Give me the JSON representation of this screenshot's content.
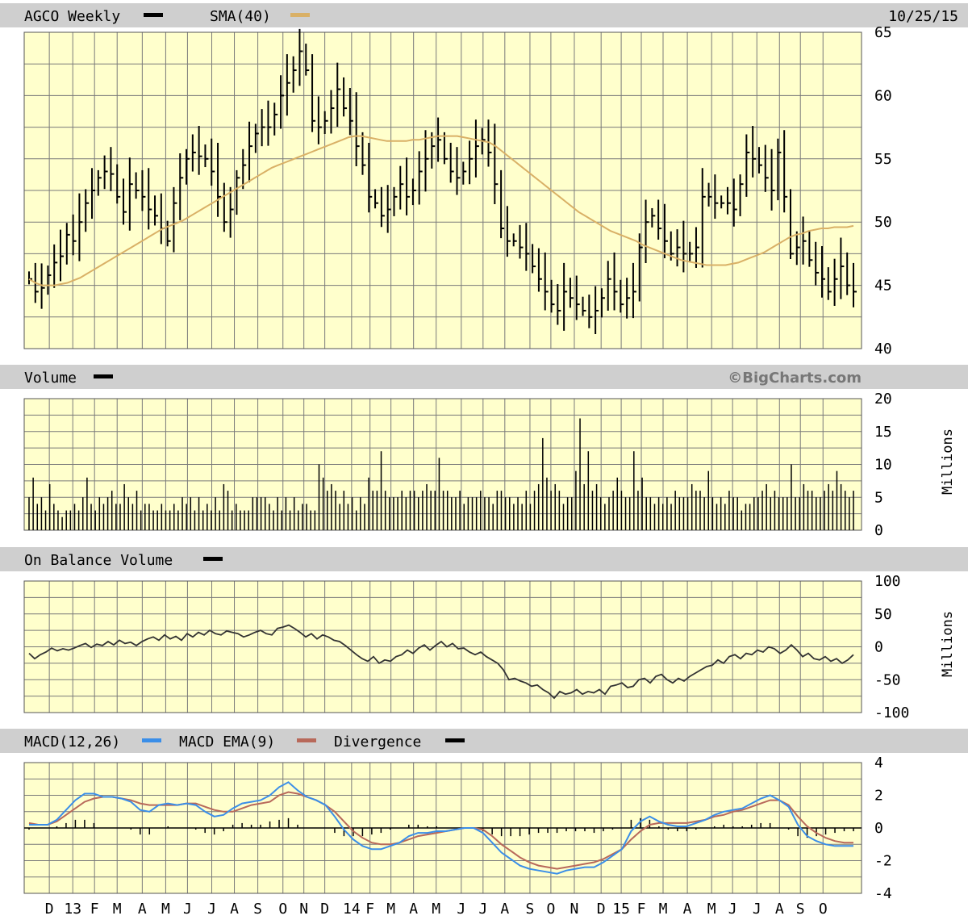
{
  "header": {
    "title": "AGCO Weekly",
    "sma_label": "SMA(40)",
    "date": "10/25/15"
  },
  "volume_panel": {
    "title": "Volume",
    "watermark": "©BigCharts.com",
    "unit": "Millions"
  },
  "obv_panel": {
    "title": "On Balance Volume",
    "unit": "Millions"
  },
  "macd_panel": {
    "title1": "MACD(12,26)",
    "title2": "MACD EMA(9)",
    "title3": "Divergence"
  },
  "colors": {
    "background": "#ffffcc",
    "grid": "#7a7a7a",
    "header_bar": "#cfcfcf",
    "price": "#000000",
    "sma": "#d9b066",
    "macd": "#3a8ee8",
    "macd_ema": "#b8695a",
    "divergence": "#000000"
  },
  "chart_data": [
    {
      "type": "line",
      "title": "AGCO Weekly",
      "series": [
        {
          "name": "AGCO Weekly",
          "style": "ohlc-bar",
          "values": [
            45.5,
            44.5,
            44.8,
            45.8,
            46.8,
            47.3,
            49.0,
            48.5,
            50.0,
            51.5,
            52.5,
            53.5,
            54.0,
            53.8,
            52.0,
            50.8,
            53.0,
            52.5,
            52.0,
            51.0,
            50.5,
            49.5,
            48.5,
            51.5,
            53.5,
            55.0,
            55.5,
            55.2,
            55.0,
            54.0,
            52.0,
            50.0,
            51.0,
            53.5,
            54.5,
            56.0,
            57.0,
            57.5,
            57.5,
            58.5,
            60.0,
            61.0,
            62.0,
            63.5,
            62.0,
            58.0,
            57.5,
            58.0,
            59.0,
            60.5,
            59.0,
            58.0,
            56.0,
            54.5,
            52.0,
            51.5,
            50.5,
            51.0,
            52.0,
            53.0,
            52.0,
            52.5,
            54.0,
            55.0,
            56.0,
            56.5,
            55.0,
            54.0,
            53.5,
            54.0,
            55.0,
            56.0,
            56.5,
            55.5,
            53.0,
            49.5,
            48.5,
            48.5,
            48.0,
            47.5,
            46.5,
            45.5,
            44.5,
            43.5,
            43.0,
            44.5,
            44.0,
            43.5,
            43.0,
            42.5,
            43.0,
            44.0,
            45.5,
            44.5,
            43.5,
            44.0,
            44.5,
            48.0,
            50.0,
            50.5,
            49.5,
            48.5,
            47.5,
            48.0,
            47.5,
            47.5,
            48.0,
            52.0,
            52.0,
            51.5,
            51.5,
            51.5,
            51.0,
            53.0,
            55.5,
            55.0,
            54.5,
            53.5,
            52.5,
            55.5,
            52.0,
            47.5,
            48.0,
            48.5,
            47.0,
            46.0,
            45.5,
            44.5,
            45.5,
            46.5,
            45.0,
            44.5
          ]
        },
        {
          "name": "SMA(40)",
          "values": [
            45.5,
            45.2,
            45.0,
            45.0,
            45.0,
            45.1,
            45.2,
            45.4,
            45.6,
            45.9,
            46.2,
            46.5,
            46.8,
            47.1,
            47.4,
            47.7,
            48.0,
            48.3,
            48.6,
            48.9,
            49.2,
            49.5,
            49.7,
            49.9,
            50.1,
            50.4,
            50.7,
            51.0,
            51.3,
            51.6,
            51.9,
            52.2,
            52.5,
            52.8,
            53.1,
            53.4,
            53.7,
            54.0,
            54.3,
            54.5,
            54.7,
            54.9,
            55.1,
            55.3,
            55.5,
            55.7,
            55.9,
            56.1,
            56.3,
            56.5,
            56.7,
            56.8,
            56.8,
            56.7,
            56.6,
            56.5,
            56.4,
            56.4,
            56.4,
            56.4,
            56.5,
            56.5,
            56.6,
            56.7,
            56.8,
            56.8,
            56.8,
            56.8,
            56.7,
            56.6,
            56.5,
            56.4,
            56.3,
            56.0,
            55.6,
            55.2,
            54.8,
            54.4,
            54.0,
            53.6,
            53.2,
            52.8,
            52.4,
            52.0,
            51.6,
            51.2,
            50.8,
            50.5,
            50.2,
            49.9,
            49.6,
            49.3,
            49.1,
            48.9,
            48.7,
            48.5,
            48.2,
            48.0,
            47.8,
            47.6,
            47.4,
            47.2,
            47.0,
            46.9,
            46.8,
            46.7,
            46.6,
            46.6,
            46.6,
            46.6,
            46.7,
            46.8,
            47.0,
            47.2,
            47.4,
            47.6,
            47.9,
            48.2,
            48.5,
            48.8,
            49.0,
            49.1,
            49.3,
            49.4,
            49.5,
            49.5,
            49.6,
            49.6,
            49.6,
            49.7
          ]
        }
      ],
      "ylim": [
        40,
        65
      ],
      "yticks": [
        40,
        45,
        50,
        55,
        60,
        65
      ],
      "grid": true
    },
    {
      "type": "bar",
      "title": "Volume",
      "ylabel": "Millions",
      "values": [
        5,
        8,
        4,
        5,
        3,
        7,
        4,
        3,
        2,
        3,
        3,
        4,
        3,
        5,
        8,
        4,
        3,
        5,
        4,
        5,
        6,
        4,
        4,
        7,
        5,
        4,
        6,
        3,
        4,
        4,
        3,
        3,
        4,
        3,
        3,
        4,
        3,
        5,
        4,
        5,
        3,
        5,
        3,
        4,
        3,
        5,
        3,
        7,
        6,
        3,
        4,
        3,
        3,
        3,
        5,
        5,
        5,
        5,
        4,
        3,
        5,
        3,
        5,
        3,
        5,
        3,
        4,
        4,
        3,
        3,
        10,
        8,
        6,
        7,
        6,
        4,
        6,
        4,
        5,
        3,
        5,
        4,
        8,
        6,
        6,
        12,
        6,
        5,
        5,
        5,
        6,
        5,
        6,
        6,
        5,
        6,
        7,
        6,
        6,
        11,
        6,
        6,
        5,
        5,
        6,
        4,
        5,
        5,
        5,
        6,
        5,
        5,
        4,
        6,
        6,
        5,
        5,
        4,
        5,
        4,
        6,
        4,
        6,
        7,
        14,
        8,
        6,
        7,
        6,
        4,
        5,
        5,
        9,
        17,
        7,
        12,
        6,
        7,
        5,
        4,
        5,
        6,
        8,
        6,
        5,
        5,
        12,
        6,
        8,
        5,
        5,
        4,
        5,
        4,
        5,
        4,
        6,
        5,
        5,
        5,
        7,
        6,
        6,
        5,
        9,
        5,
        4,
        5,
        4,
        6,
        5,
        5,
        3,
        4,
        4,
        5,
        5,
        6,
        7,
        5,
        6,
        5,
        5,
        5,
        10,
        5,
        5,
        7,
        6,
        6,
        5,
        5,
        6,
        7,
        6,
        9,
        7,
        6,
        5,
        6
      ],
      "ylim": [
        0,
        20
      ],
      "yticks": [
        0,
        5,
        10,
        15,
        20
      ],
      "grid": true
    },
    {
      "type": "line",
      "title": "On Balance Volume",
      "ylabel": "Millions",
      "values": [
        -10,
        -18,
        -12,
        -8,
        -2,
        -6,
        -3,
        -5,
        -2,
        2,
        5,
        -1,
        4,
        2,
        8,
        3,
        10,
        5,
        7,
        2,
        8,
        12,
        15,
        10,
        18,
        12,
        16,
        10,
        20,
        15,
        22,
        18,
        25,
        20,
        18,
        24,
        22,
        20,
        15,
        18,
        22,
        25,
        20,
        18,
        28,
        30,
        33,
        28,
        22,
        15,
        20,
        12,
        18,
        15,
        10,
        8,
        2,
        -5,
        -12,
        -18,
        -22,
        -15,
        -25,
        -20,
        -22,
        -15,
        -12,
        -5,
        -10,
        -2,
        3,
        -5,
        2,
        8,
        0,
        5,
        -3,
        -2,
        -8,
        -12,
        -8,
        -15,
        -20,
        -25,
        -35,
        -50,
        -48,
        -52,
        -55,
        -60,
        -58,
        -65,
        -70,
        -78,
        -68,
        -72,
        -70,
        -65,
        -72,
        -68,
        -70,
        -65,
        -72,
        -60,
        -58,
        -55,
        -62,
        -60,
        -50,
        -48,
        -55,
        -45,
        -42,
        -50,
        -55,
        -48,
        -52,
        -45,
        -40,
        -35,
        -30,
        -28,
        -20,
        -25,
        -15,
        -12,
        -18,
        -10,
        -12,
        -5,
        -8,
        0,
        -3,
        -10,
        -5,
        3,
        -5,
        -15,
        -10,
        -18,
        -20,
        -15,
        -22,
        -18,
        -25,
        -20,
        -12
      ],
      "ylim": [
        -100,
        100
      ],
      "yticks": [
        -100,
        -50,
        0,
        50,
        100
      ],
      "grid": true
    },
    {
      "type": "line",
      "title": "MACD(12,26)",
      "series": [
        {
          "name": "MACD(12,26)",
          "values": [
            0.2,
            0.2,
            0.2,
            0.5,
            1.1,
            1.7,
            2.1,
            2.1,
            1.9,
            1.9,
            1.8,
            1.6,
            1.1,
            1.0,
            1.4,
            1.5,
            1.4,
            1.5,
            1.4,
            1.0,
            0.7,
            0.8,
            1.2,
            1.5,
            1.6,
            1.7,
            2.0,
            2.5,
            2.8,
            2.3,
            1.9,
            1.7,
            1.4,
            0.7,
            -0.1,
            -0.7,
            -1.1,
            -1.3,
            -1.3,
            -1.1,
            -0.9,
            -0.5,
            -0.3,
            -0.3,
            -0.2,
            -0.2,
            -0.1,
            0.0,
            0.0,
            -0.3,
            -0.9,
            -1.5,
            -1.9,
            -2.3,
            -2.5,
            -2.6,
            -2.7,
            -2.8,
            -2.6,
            -2.5,
            -2.4,
            -2.4,
            -2.1,
            -1.7,
            -1.3,
            -0.2,
            0.4,
            0.7,
            0.4,
            0.2,
            0.1,
            0.1,
            0.3,
            0.5,
            0.8,
            1.0,
            1.1,
            1.2,
            1.5,
            1.8,
            2.0,
            1.7,
            1.3,
            0.2,
            -0.5,
            -0.8,
            -1.0,
            -1.1,
            -1.1,
            -1.1
          ]
        },
        {
          "name": "MACD EMA(9)",
          "values": [
            0.3,
            0.2,
            0.2,
            0.4,
            0.8,
            1.2,
            1.6,
            1.8,
            1.9,
            1.9,
            1.8,
            1.7,
            1.5,
            1.4,
            1.4,
            1.4,
            1.4,
            1.5,
            1.5,
            1.3,
            1.1,
            1.0,
            1.0,
            1.2,
            1.4,
            1.5,
            1.6,
            2.0,
            2.2,
            2.1,
            1.9,
            1.7,
            1.4,
            1.0,
            0.4,
            -0.2,
            -0.6,
            -0.9,
            -1.0,
            -1.0,
            -0.9,
            -0.7,
            -0.5,
            -0.4,
            -0.3,
            -0.2,
            -0.1,
            0.0,
            0.0,
            -0.1,
            -0.5,
            -1.0,
            -1.4,
            -1.8,
            -2.1,
            -2.3,
            -2.4,
            -2.5,
            -2.4,
            -2.3,
            -2.2,
            -2.1,
            -1.9,
            -1.6,
            -1.3,
            -0.7,
            -0.2,
            0.2,
            0.3,
            0.3,
            0.3,
            0.3,
            0.4,
            0.5,
            0.7,
            0.8,
            1.0,
            1.1,
            1.3,
            1.5,
            1.7,
            1.7,
            1.4,
            0.7,
            0.1,
            -0.3,
            -0.6,
            -0.8,
            -0.9,
            -0.9
          ]
        },
        {
          "name": "Divergence",
          "style": "histogram",
          "values": [
            -0.1,
            0.0,
            0.0,
            0.1,
            0.3,
            0.5,
            0.5,
            0.3,
            0.0,
            0.0,
            0.0,
            -0.1,
            -0.4,
            -0.4,
            0.0,
            0.1,
            0.0,
            0.0,
            -0.1,
            -0.3,
            -0.4,
            -0.2,
            0.2,
            0.3,
            0.2,
            0.2,
            0.4,
            0.5,
            0.6,
            0.2,
            0.0,
            0.0,
            0.0,
            -0.3,
            -0.5,
            -0.5,
            -0.5,
            -0.4,
            -0.3,
            -0.1,
            0.0,
            0.2,
            0.2,
            0.1,
            0.1,
            0.0,
            0.0,
            0.0,
            0.0,
            -0.2,
            -0.4,
            -0.5,
            -0.5,
            -0.5,
            -0.4,
            -0.3,
            -0.3,
            -0.3,
            -0.2,
            -0.2,
            -0.2,
            -0.3,
            -0.2,
            -0.1,
            0.0,
            0.5,
            0.6,
            0.5,
            0.1,
            -0.1,
            -0.2,
            -0.2,
            -0.1,
            0.0,
            0.1,
            0.2,
            0.1,
            0.1,
            0.2,
            0.3,
            0.3,
            0.0,
            -0.1,
            -0.5,
            -0.6,
            -0.5,
            -0.4,
            -0.3,
            -0.2,
            -0.2
          ]
        }
      ],
      "ylim": [
        -4,
        4
      ],
      "yticks": [
        -4,
        -2,
        0,
        2,
        4
      ],
      "grid": true
    }
  ],
  "x_axis": {
    "ticks": [
      {
        "label": "D",
        "pos": 0.03
      },
      {
        "label": "13",
        "pos": 0.058
      },
      {
        "label": "F",
        "pos": 0.084
      },
      {
        "label": "M",
        "pos": 0.111
      },
      {
        "label": "A",
        "pos": 0.141
      },
      {
        "label": "M",
        "pos": 0.169
      },
      {
        "label": "J",
        "pos": 0.195
      },
      {
        "label": "J",
        "pos": 0.224
      },
      {
        "label": "A",
        "pos": 0.251
      },
      {
        "label": "S",
        "pos": 0.279
      },
      {
        "label": "O",
        "pos": 0.309
      },
      {
        "label": "N",
        "pos": 0.334
      },
      {
        "label": "D",
        "pos": 0.359
      },
      {
        "label": "14",
        "pos": 0.391
      },
      {
        "label": "F",
        "pos": 0.413
      },
      {
        "label": "M",
        "pos": 0.438
      },
      {
        "label": "A",
        "pos": 0.465
      },
      {
        "label": "M",
        "pos": 0.492
      },
      {
        "label": "J",
        "pos": 0.522
      },
      {
        "label": "J",
        "pos": 0.548
      },
      {
        "label": "A",
        "pos": 0.574
      },
      {
        "label": "S",
        "pos": 0.604
      },
      {
        "label": "O",
        "pos": 0.629
      },
      {
        "label": "N",
        "pos": 0.657
      },
      {
        "label": "D",
        "pos": 0.689
      },
      {
        "label": "15",
        "pos": 0.713
      },
      {
        "label": "F",
        "pos": 0.737
      },
      {
        "label": "M",
        "pos": 0.763
      },
      {
        "label": "A",
        "pos": 0.792
      },
      {
        "label": "M",
        "pos": 0.821
      },
      {
        "label": "J",
        "pos": 0.846
      },
      {
        "label": "J",
        "pos": 0.875
      },
      {
        "label": "A",
        "pos": 0.902
      },
      {
        "label": "S",
        "pos": 0.927
      },
      {
        "label": "O",
        "pos": 0.954
      }
    ]
  }
}
